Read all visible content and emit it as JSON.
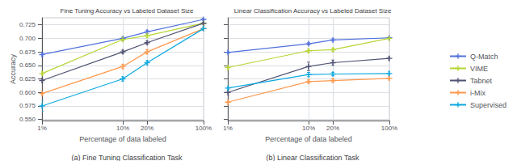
{
  "chart_data": [
    {
      "type": "line",
      "title": "Fine Tuning Accuracy vs Labeled Dataset Size",
      "xlabel": "Percentage of data labeled",
      "ylabel": "Accuracy",
      "caption": "(a) Fine Tuning Classification Task",
      "log": "x",
      "x": [
        1,
        10,
        20,
        100
      ],
      "xlim": [
        1,
        100
      ],
      "xticks": [
        {
          "value": 1,
          "label": "1%"
        },
        {
          "value": 10,
          "label": "10%"
        },
        {
          "value": 20,
          "label": "20%"
        },
        {
          "value": 100,
          "label": "100%"
        }
      ],
      "ylim": [
        0.548,
        0.738
      ],
      "yticks": [
        {
          "value": 0.55,
          "label": "0.550"
        },
        0.575,
        {
          "value": 0.6,
          "label": "0.600"
        },
        0.625,
        {
          "value": 0.65,
          "label": "0.650"
        },
        0.675,
        {
          "value": 0.7,
          "label": "0.700"
        },
        0.725
      ],
      "grid": true,
      "marker": "plus",
      "series": [
        {
          "name": "Q-Match",
          "values": [
            0.67,
            0.7,
            0.712,
            0.735
          ],
          "yerr": [
            0.003,
            0.002,
            0.003,
            0.002
          ]
        },
        {
          "name": "VIME",
          "values": [
            0.635,
            0.698,
            0.705,
            0.728
          ],
          "yerr": [
            0.003,
            0.003,
            0.003,
            0.002
          ]
        },
        {
          "name": "Tabnet",
          "values": [
            0.622,
            0.675,
            0.692,
            0.728
          ],
          "yerr": [
            0.004,
            0.003,
            0.003,
            0.002
          ]
        },
        {
          "name": "i-Mix",
          "values": [
            0.598,
            0.648,
            0.675,
            0.718
          ],
          "yerr": [
            0.004,
            0.004,
            0.004,
            0.003
          ]
        },
        {
          "name": "Supervised",
          "values": [
            0.575,
            0.625,
            0.655,
            0.718
          ],
          "yerr": [
            0.01,
            0.004,
            0.004,
            0.003
          ]
        }
      ]
    },
    {
      "type": "line",
      "title": "Linear Classification Accuracy vs Labeled Dataset Size",
      "xlabel": "Percentage of data labeled",
      "caption": "(b) Linear Classification Task",
      "log": "x",
      "x": [
        1,
        10,
        20,
        100
      ],
      "xlim": [
        1,
        100
      ],
      "xticks": [
        {
          "value": 1,
          "label": "1%"
        },
        {
          "value": 10,
          "label": "10%"
        },
        {
          "value": 20,
          "label": "20%"
        },
        {
          "value": 100,
          "label": "100%"
        }
      ],
      "ylim": [
        0.548,
        0.738
      ],
      "yticks": [
        {
          "value": 0.55,
          "label": "0.550"
        },
        0.575,
        {
          "value": 0.6,
          "label": "0.600"
        },
        0.625,
        {
          "value": 0.65,
          "label": "0.650"
        },
        0.675,
        {
          "value": 0.7,
          "label": "0.700"
        },
        0.725
      ],
      "grid": true,
      "tick_labels": "x",
      "marker": "plus",
      "legend": "right",
      "series": [
        {
          "name": "Q-Match",
          "values": [
            0.674,
            0.69,
            0.697,
            0.701
          ],
          "yerr": [
            0.002,
            0.002,
            0.002,
            0.002
          ]
        },
        {
          "name": "VIME",
          "values": [
            0.646,
            0.677,
            0.679,
            0.7
          ],
          "yerr": [
            0.003,
            0.003,
            0.003,
            0.002
          ]
        },
        {
          "name": "Tabnet",
          "values": [
            0.6,
            0.648,
            0.655,
            0.663
          ],
          "yerr": [
            0.005,
            0.008,
            0.005,
            0.003
          ]
        },
        {
          "name": "i-Mix",
          "values": [
            0.582,
            0.62,
            0.622,
            0.626
          ],
          "yerr": [
            0.004,
            0.003,
            0.003,
            0.003
          ]
        },
        {
          "name": "Supervised",
          "values": [
            0.608,
            0.633,
            0.634,
            0.635
          ],
          "yerr": [
            0.003,
            0.004,
            0.003,
            0.003
          ]
        }
      ]
    }
  ]
}
